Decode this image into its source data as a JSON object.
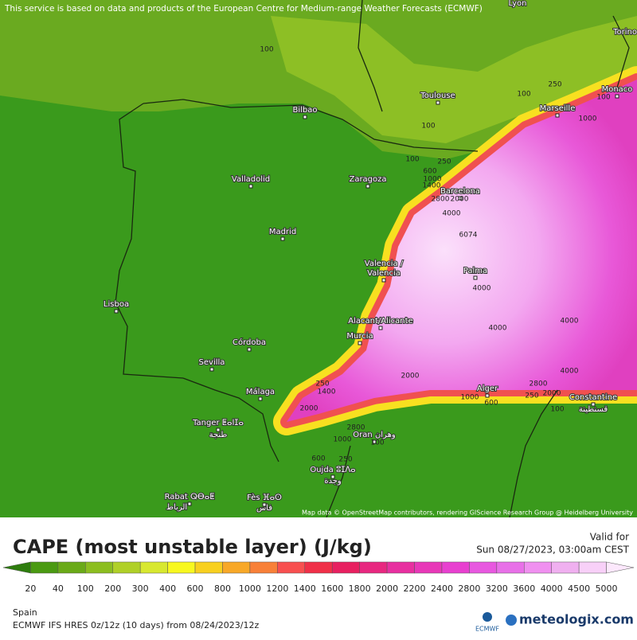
{
  "header": {
    "notice": "This service is based on data and products of the European Centre for Medium-range Weather Forecasts (ECMWF)"
  },
  "map": {
    "cities": [
      "Lyon",
      "Torino",
      "Monaco",
      "Toulouse",
      "Marseille",
      "Bilbao",
      "Valladolid",
      "Zaragoza",
      "Barcelona",
      "Madrid",
      "Valencia /",
      "Valencia",
      "Palma",
      "Lisboa",
      "Alacant/Alicante",
      "Murcia",
      "Córdoba",
      "Sevilla",
      "Málaga",
      "Alger",
      "Constantine",
      "قسنطينة",
      "Tanger ⵟⴰⵏⵊⴰ",
      "طنجة",
      "Oran وهران",
      "Oujda ⵓⵊⴷⴰ",
      "وجدة",
      "Rabat ⵕⴱⴰⵟ",
      "الرباط",
      "Fès ⴼⴰⵙ",
      "فاس"
    ],
    "contour_labels": [
      "100",
      "100",
      "100",
      "600",
      "250",
      "1000",
      "1400",
      "2800",
      "2000",
      "4000",
      "6074",
      "4000",
      "4000",
      "4000",
      "4000",
      "2800",
      "250",
      "2000",
      "100",
      "1000",
      "600",
      "2000",
      "250",
      "1400",
      "2000",
      "2800",
      "1000",
      "600",
      "250",
      "100",
      "250",
      "100",
      "1000",
      "100"
    ],
    "attribution": "Map data © OpenStreetMap contributors, rendering GIScience Research Group @ Heidelberg University"
  },
  "footer": {
    "title": "CAPE (most unstable layer) (J/kg)",
    "valid_label": "Valid for",
    "valid_time": "Sun 08/27/2023, 03:00am CEST",
    "legend": {
      "ticks": [
        20,
        40,
        100,
        200,
        300,
        400,
        600,
        800,
        1000,
        1200,
        1400,
        1600,
        1800,
        2000,
        2200,
        2400,
        2800,
        3200,
        3600,
        4000,
        4500,
        5000
      ],
      "colors": [
        "#2e7d0e",
        "#4a9a12",
        "#6aaa18",
        "#8cbe20",
        "#b0d028",
        "#d8e830",
        "#f8f820",
        "#f8d020",
        "#f8a828",
        "#f88038",
        "#f85050",
        "#f03048",
        "#e82060",
        "#e82880",
        "#e830a0",
        "#e838b8",
        "#e840d0",
        "#e858e0",
        "#e870e8",
        "#f090f0",
        "#f0b0f0",
        "#f8d0f8",
        "#fce8fc"
      ]
    },
    "region": "Spain",
    "model": "ECMWF IFS HRES 0z/12z (10 days) from 08/24/2023/12z",
    "brand": "meteologix.com",
    "ecmwf": "ECMWF"
  }
}
